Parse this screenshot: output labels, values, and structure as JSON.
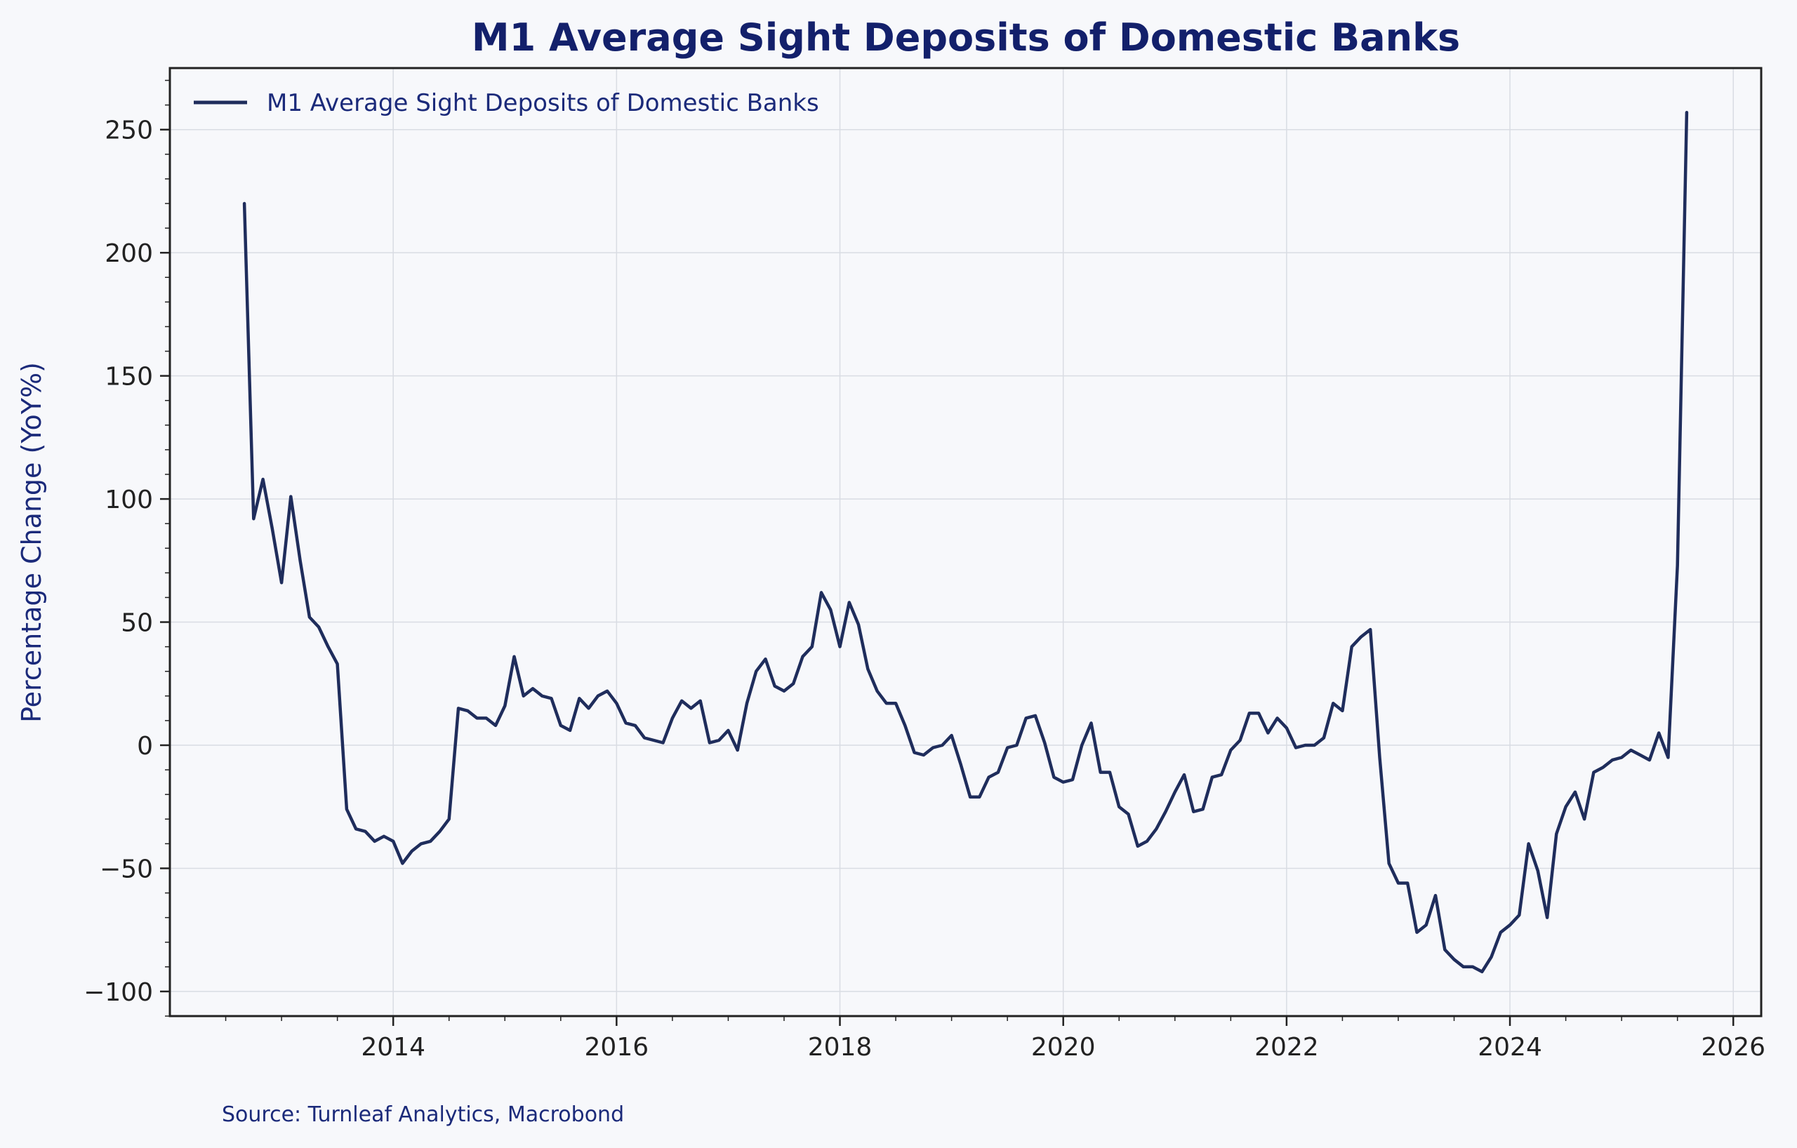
{
  "colors": {
    "background": "#f7f8fb",
    "line": "#1f2d5c",
    "title": "#13206b",
    "grid": "#d9dce3",
    "axis": "#222222"
  },
  "chart_data": {
    "type": "line",
    "title": "M1 Average Sight Deposits of Domestic Banks",
    "xlabel": "",
    "ylabel": "Percentage Change (YoY%)",
    "source": "Source: Turnleaf Analytics, Macrobond",
    "xlim": [
      2012.0,
      2026.25
    ],
    "ylim": [
      -110,
      275
    ],
    "x_ticks": [
      2014,
      2016,
      2018,
      2020,
      2022,
      2024,
      2026
    ],
    "x_tick_labels": [
      "2014",
      "2016",
      "2018",
      "2020",
      "2022",
      "2024",
      "2026"
    ],
    "y_ticks": [
      -100,
      -50,
      0,
      50,
      100,
      150,
      200,
      250
    ],
    "y_tick_labels": [
      "−100",
      "−50",
      "0",
      "50",
      "100",
      "150",
      "200",
      "250"
    ],
    "grid": true,
    "legend": {
      "placement": "top-left"
    },
    "series": [
      {
        "name": "M1 Average Sight Deposits of Domestic Banks",
        "x_start": "2012-09",
        "values": [
          220,
          92,
          108,
          88,
          66,
          101,
          75,
          52,
          48,
          40,
          33,
          -26,
          -34,
          -35,
          -39,
          -37,
          -39,
          -48,
          -43,
          -40,
          -39,
          -35,
          -30,
          15,
          14,
          11,
          11,
          8,
          16,
          36,
          20,
          23,
          20,
          19,
          8,
          6,
          19,
          15,
          20,
          22,
          17,
          9,
          8,
          3,
          2,
          1,
          11,
          18,
          15,
          18,
          1,
          2,
          6,
          -2,
          17,
          30,
          35,
          24,
          22,
          25,
          36,
          40,
          62,
          55,
          40,
          58,
          49,
          31,
          22,
          17,
          17,
          8,
          -3,
          -4,
          -1,
          0,
          4,
          -8,
          -21,
          -21,
          -13,
          -11,
          -1,
          0,
          11,
          12,
          1,
          -13,
          -15,
          -14,
          0,
          9,
          -11,
          -11,
          -25,
          -28,
          -41,
          -39,
          -34,
          -27,
          -19,
          -12,
          -27,
          -26,
          -13,
          -12,
          -2,
          2,
          13,
          13,
          5,
          11,
          7,
          -1,
          0,
          0,
          3,
          17,
          14,
          40,
          44,
          47,
          -5,
          -48,
          -56,
          -56,
          -76,
          -73,
          -61,
          -83,
          -87,
          -90,
          -90,
          -92,
          -86,
          -76,
          -73,
          -69,
          -40,
          -51,
          -70,
          -36,
          -25,
          -19,
          -30,
          -11,
          -9,
          -6,
          -5,
          -2,
          -4,
          -6,
          5,
          -5,
          73,
          257
        ]
      }
    ]
  }
}
